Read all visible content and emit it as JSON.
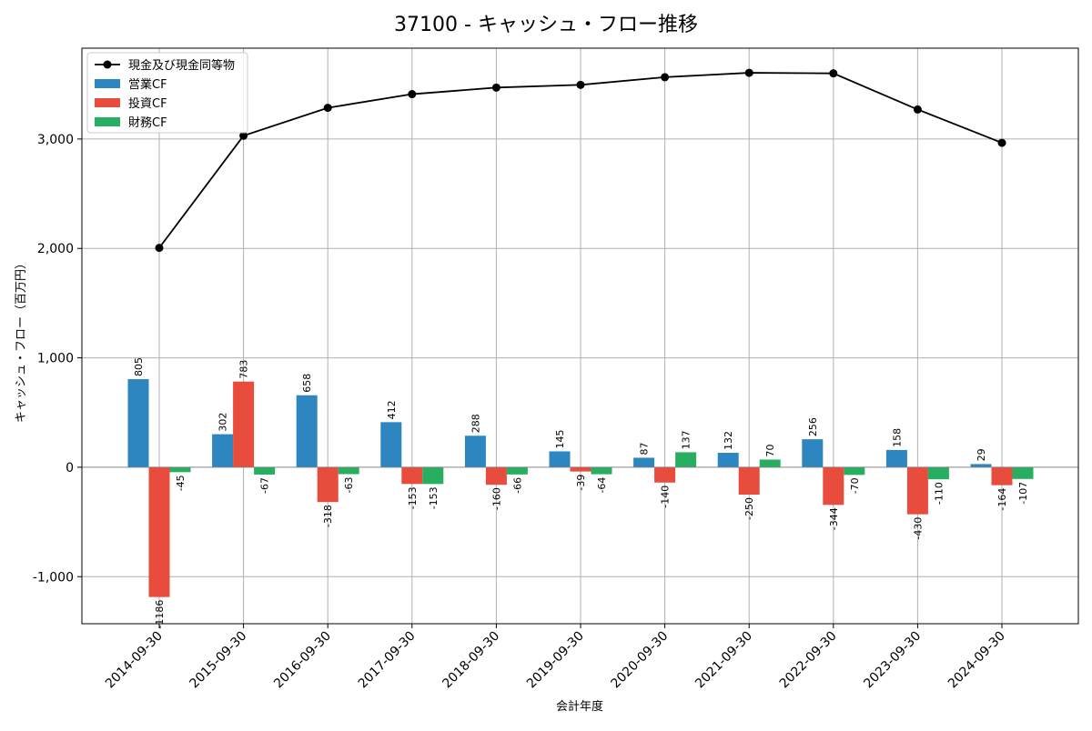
{
  "chart_data": {
    "type": "bar",
    "title": "37100 - キャッシュ・フロー推移",
    "xlabel": "会計年度",
    "ylabel": "キャッシュ・フロー（百万円）",
    "categories": [
      "2014-09-30",
      "2015-09-30",
      "2016-09-30",
      "2017-09-30",
      "2018-09-30",
      "2019-09-30",
      "2020-09-30",
      "2021-09-30",
      "2022-09-30",
      "2023-09-30",
      "2024-09-30"
    ],
    "ylim": [
      -1430,
      3830
    ],
    "yticks": [
      -1000,
      0,
      1000,
      2000,
      3000
    ],
    "ytick_labels": [
      "-1,000",
      "0",
      "1,000",
      "2,000",
      "3,000"
    ],
    "grid": true,
    "legend_position": "top-left",
    "series": [
      {
        "name": "営業CF",
        "kind": "bar",
        "color": "#2e86c1",
        "values": [
          805,
          302,
          658,
          412,
          288,
          145,
          87,
          132,
          256,
          158,
          29
        ]
      },
      {
        "name": "投資CF",
        "kind": "bar",
        "color": "#e74c3c",
        "values": [
          -1186,
          783,
          -318,
          -153,
          -160,
          -39,
          -140,
          -250,
          -344,
          -430,
          -164
        ]
      },
      {
        "name": "財務CF",
        "kind": "bar",
        "color": "#27ae60",
        "values": [
          -45,
          -67,
          -63,
          -153,
          -66,
          -64,
          137,
          70,
          -70,
          -110,
          -107
        ]
      },
      {
        "name": "現金及び現金同等物",
        "kind": "line",
        "color": "#000000",
        "values": [
          2005,
          3030,
          3285,
          3410,
          3470,
          3495,
          3565,
          3605,
          3600,
          3270,
          2965
        ]
      }
    ]
  }
}
